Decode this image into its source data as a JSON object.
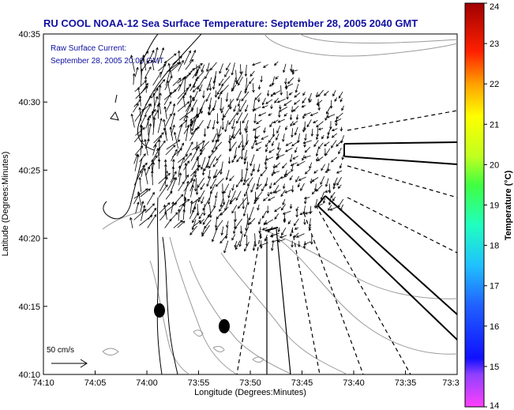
{
  "title": "RU COOL  NOAA-12  Sea Surface Temperature:  September 28, 2005 2040 GMT",
  "subtitle_line1": "Raw Surface Current:",
  "subtitle_line2": "September 28, 2005 20:00 GMT",
  "x_axis_label": "Longitude (Degrees:Minutes)",
  "y_axis_label": "Latitude (Degrees:Minutes)",
  "x_ticks": [
    {
      "label": "74:10",
      "value": 74.1667
    },
    {
      "label": "74:05",
      "value": 74.0833
    },
    {
      "label": "74:00",
      "value": 74.0
    },
    {
      "label": "73:55",
      "value": 73.9167
    },
    {
      "label": "73:50",
      "value": 73.8333
    },
    {
      "label": "73:45",
      "value": 73.75
    },
    {
      "label": "73:40",
      "value": 73.6667
    },
    {
      "label": "73:35",
      "value": 73.5833
    },
    {
      "label": "73:3",
      "value": 73.5
    }
  ],
  "y_ticks": [
    {
      "label": "40:35",
      "value": 40.5833
    },
    {
      "label": "40:30",
      "value": 40.5
    },
    {
      "label": "40:25",
      "value": 40.4167
    },
    {
      "label": "40:20",
      "value": 40.3333
    },
    {
      "label": "40:15",
      "value": 40.25
    },
    {
      "label": "40:10",
      "value": 40.1667
    }
  ],
  "colorbar": {
    "label": "Temperature (°C)",
    "ticks": [
      "24",
      "23",
      "22",
      "21",
      "20",
      "19",
      "18",
      "17",
      "16",
      "15",
      "14"
    ],
    "min": 14,
    "max": 24
  },
  "scale_label": "50 cm/s",
  "colors": {
    "title_text": "#1010a0",
    "coastline": "#000000",
    "bathymetry": "#999999",
    "vectors": "#000000"
  }
}
